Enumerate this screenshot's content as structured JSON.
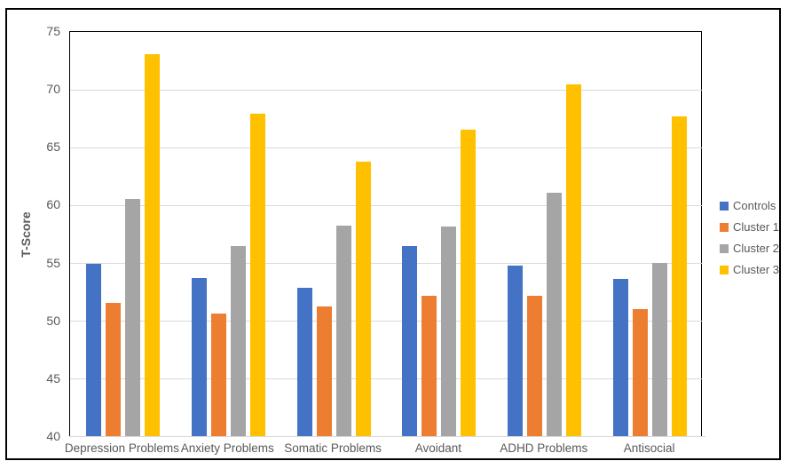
{
  "chart_data": {
    "type": "bar",
    "title": "",
    "xlabel": "",
    "ylabel": "T-Score",
    "ylim": [
      40,
      75
    ],
    "yticks": [
      40,
      45,
      50,
      55,
      60,
      65,
      70,
      75
    ],
    "grid": true,
    "legend_position": "right",
    "categories": [
      "Depression Problems",
      "Anxiety Problems",
      "Somatic Problems",
      "Avoidant",
      "ADHD Problems",
      "Antisocial"
    ],
    "series": [
      {
        "name": "Controls",
        "color": "#4472C4",
        "values": [
          54.9,
          53.7,
          52.8,
          56.4,
          54.7,
          53.6
        ]
      },
      {
        "name": "Cluster 1",
        "color": "#ED7D31",
        "values": [
          51.5,
          50.6,
          51.2,
          52.1,
          52.1,
          51.0
        ]
      },
      {
        "name": "Cluster 2",
        "color": "#A5A5A5",
        "values": [
          60.5,
          56.4,
          58.2,
          58.1,
          61.0,
          55.0
        ]
      },
      {
        "name": "Cluster 3",
        "color": "#FFC000",
        "values": [
          73.0,
          67.9,
          63.7,
          66.5,
          70.4,
          67.6
        ]
      }
    ],
    "colors": {
      "gridline": "#D9D9D9",
      "axis_text": "#595959",
      "plot_border": "#000000",
      "baseline": "#D9D9D9"
    }
  }
}
